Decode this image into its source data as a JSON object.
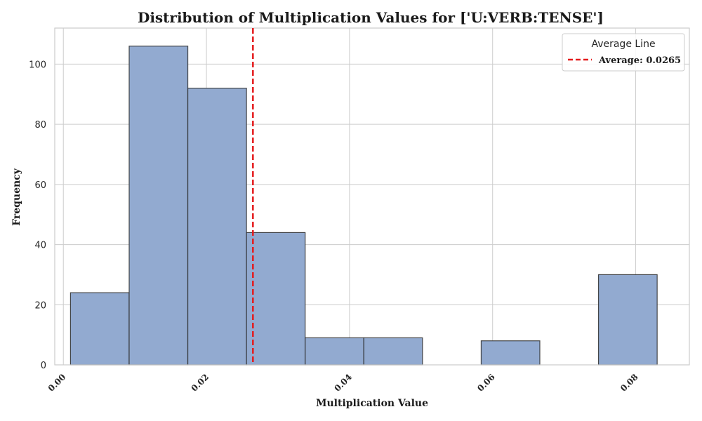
{
  "chart_data": {
    "type": "bar",
    "title": "Distribution of Multiplication Values for ['U:VERB:TENSE']",
    "xlabel": "Multiplication Value",
    "ylabel": "Frequency",
    "xlim": [
      -0.0012,
      0.0875
    ],
    "ylim": [
      0,
      112
    ],
    "x_ticks": [
      0.0,
      0.02,
      0.04,
      0.06,
      0.08
    ],
    "x_tick_labels": [
      "0.00",
      "0.02",
      "0.04",
      "0.06",
      "0.08"
    ],
    "y_ticks": [
      0,
      20,
      40,
      60,
      80,
      100
    ],
    "y_tick_labels": [
      "0",
      "20",
      "40",
      "60",
      "80",
      "100"
    ],
    "bins": [
      {
        "start": 0.001,
        "end": 0.0092,
        "count": 24
      },
      {
        "start": 0.0092,
        "end": 0.0174,
        "count": 106
      },
      {
        "start": 0.0174,
        "end": 0.0256,
        "count": 92
      },
      {
        "start": 0.0256,
        "end": 0.0338,
        "count": 44
      },
      {
        "start": 0.0338,
        "end": 0.042,
        "count": 9
      },
      {
        "start": 0.042,
        "end": 0.0502,
        "count": 9
      },
      {
        "start": 0.0502,
        "end": 0.0584,
        "count": 0
      },
      {
        "start": 0.0584,
        "end": 0.0666,
        "count": 8
      },
      {
        "start": 0.0666,
        "end": 0.0748,
        "count": 0
      },
      {
        "start": 0.0748,
        "end": 0.083,
        "count": 30
      }
    ],
    "average": 0.0265,
    "legend": {
      "title": "Average Line",
      "entry": "Average: 0.0265",
      "position": "top-right"
    },
    "grid": true,
    "colors": {
      "bar_fill": "#92aad0",
      "bar_edge": "#2b2b2b",
      "average_line": "#e41a1c",
      "grid": "#cccccc",
      "axes": "#cccccc"
    }
  }
}
